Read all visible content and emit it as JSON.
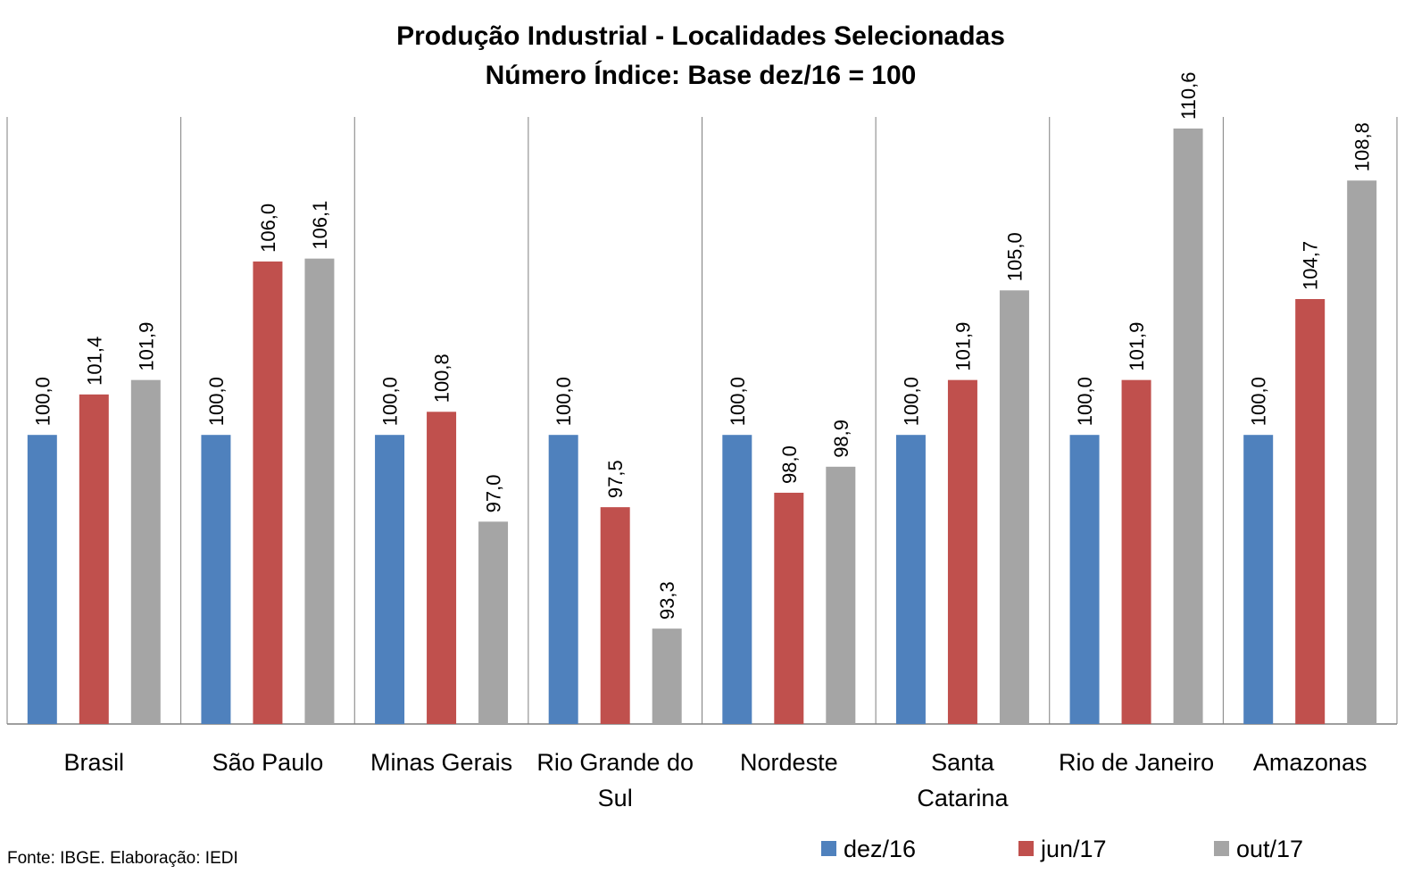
{
  "chart_data": {
    "type": "bar",
    "title": [
      "Produção Industrial - Localidades Selecionadas",
      "Número Índice: Base dez/16 = 100"
    ],
    "categories": [
      [
        "Brasil"
      ],
      [
        "São Paulo"
      ],
      [
        "Minas Gerais"
      ],
      [
        "Rio Grande do",
        "Sul"
      ],
      [
        "Nordeste"
      ],
      [
        "Santa",
        "Catarina"
      ],
      [
        "Rio de Janeiro"
      ],
      [
        "Amazonas"
      ]
    ],
    "series": [
      {
        "name": "dez/16",
        "color": "#4F81BD",
        "values": [
          100.0,
          100.0,
          100.0,
          100.0,
          100.0,
          100.0,
          100.0,
          100.0
        ],
        "labels": [
          "100,0",
          "100,0",
          "100,0",
          "100,0",
          "100,0",
          "100,0",
          "100,0",
          "100,0"
        ]
      },
      {
        "name": "jun/17",
        "color": "#C0504D",
        "values": [
          101.4,
          106.0,
          100.8,
          97.5,
          98.0,
          101.9,
          101.9,
          104.7
        ],
        "labels": [
          "101,4",
          "106,0",
          "100,8",
          "97,5",
          "98,0",
          "101,9",
          "101,9",
          "104,7"
        ]
      },
      {
        "name": "out/17",
        "color": "#A5A5A5",
        "values": [
          101.9,
          106.1,
          97.0,
          93.3,
          98.9,
          105.0,
          110.6,
          108.8
        ],
        "labels": [
          "101,9",
          "106,1",
          "97,0",
          "93,3",
          "98,9",
          "105,0",
          "110,6",
          "108,8"
        ]
      }
    ],
    "ylim": [
      90,
      111
    ],
    "value_label_orientation": "vertical",
    "legend_position": "bottom-right",
    "source": "Fonte: IBGE. Elaboração: IEDI"
  }
}
